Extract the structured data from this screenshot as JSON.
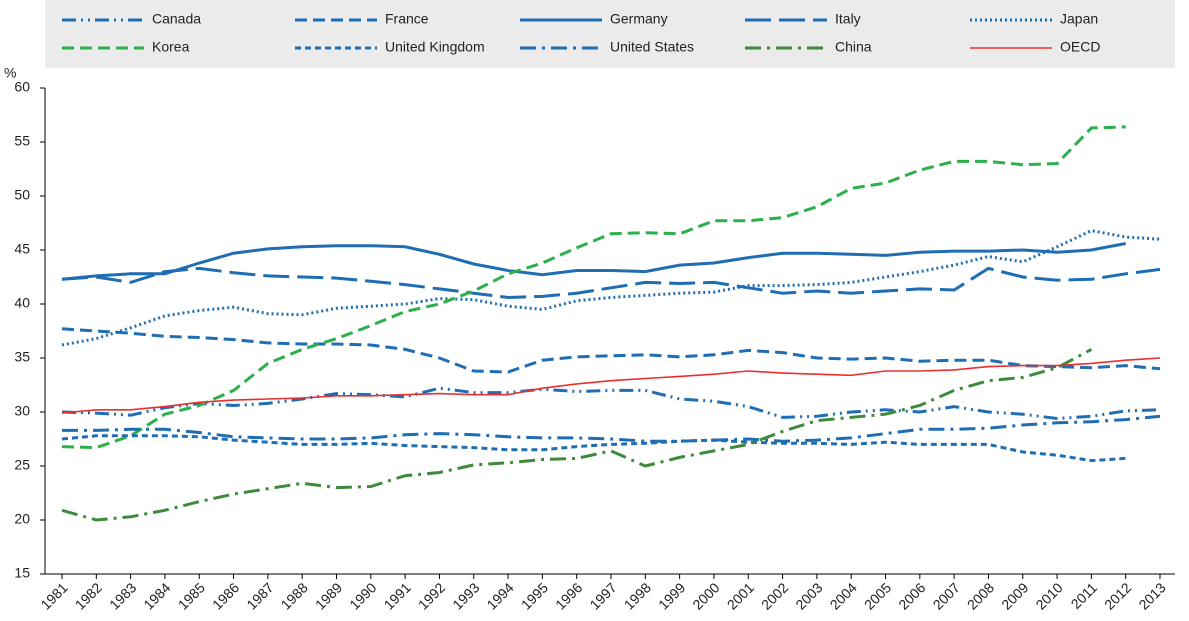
{
  "chart_data": {
    "type": "line",
    "y_label": "%",
    "categories": [
      "1981",
      "1982",
      "1983",
      "1984",
      "1985",
      "1986",
      "1987",
      "1988",
      "1989",
      "1990",
      "1991",
      "1992",
      "1993",
      "1994",
      "1995",
      "1996",
      "1997",
      "1998",
      "1999",
      "2000",
      "2001",
      "2002",
      "2003",
      "2004",
      "2005",
      "2006",
      "2007",
      "2008",
      "2009",
      "2010",
      "2011",
      "2012",
      "2013"
    ],
    "ylim": [
      15,
      60
    ],
    "yticks": [
      15,
      20,
      25,
      30,
      35,
      40,
      45,
      50,
      55,
      60
    ],
    "grid": false,
    "series": [
      {
        "name": "Canada",
        "color": "#1f6db3",
        "dash": "14 5 2 5 2 5",
        "values": [
          30.0,
          29.9,
          29.7,
          30.4,
          30.8,
          30.6,
          30.8,
          31.2,
          31.7,
          31.6,
          31.4,
          32.2,
          31.8,
          31.8,
          32.1,
          31.9,
          32.0,
          32.0,
          31.2,
          31.0,
          30.5,
          29.5,
          29.6,
          30.0,
          30.2,
          30.0,
          30.5,
          30.0,
          29.8,
          29.4,
          29.6,
          30.1,
          30.2
        ]
      },
      {
        "name": "France",
        "color": "#1f6db3",
        "dash": "12 6",
        "values": [
          37.7,
          37.5,
          37.3,
          37.0,
          36.9,
          36.7,
          36.4,
          36.3,
          36.3,
          36.2,
          35.8,
          35.0,
          33.8,
          33.7,
          34.8,
          35.1,
          35.2,
          35.3,
          35.1,
          35.3,
          35.7,
          35.5,
          35.0,
          34.9,
          35.0,
          34.7,
          34.8,
          34.8,
          34.3,
          34.2,
          34.1,
          34.3,
          34.0
        ]
      },
      {
        "name": "Germany",
        "color": "#1f6db3",
        "dash": "",
        "values": [
          42.3,
          42.6,
          42.8,
          42.8,
          43.8,
          44.7,
          45.1,
          45.3,
          45.4,
          45.4,
          45.3,
          44.6,
          43.7,
          43.1,
          42.7,
          43.1,
          43.1,
          43.0,
          43.6,
          43.8,
          44.3,
          44.7,
          44.7,
          44.6,
          44.5,
          44.8,
          44.9,
          44.9,
          45.0,
          44.8,
          45.0,
          45.6,
          null
        ]
      },
      {
        "name": "Italy",
        "color": "#1f6db3",
        "dash": "26 8",
        "values": [
          42.3,
          42.5,
          42.0,
          43.0,
          43.3,
          42.9,
          42.6,
          42.5,
          42.4,
          42.1,
          41.8,
          41.4,
          41.0,
          40.6,
          40.7,
          41.0,
          41.5,
          42.0,
          41.9,
          42.0,
          41.5,
          41.0,
          41.2,
          41.0,
          41.2,
          41.4,
          41.3,
          43.3,
          42.5,
          42.2,
          42.3,
          42.8,
          43.2
        ]
      },
      {
        "name": "Japan",
        "color": "#1f6db3",
        "dash": "2 3",
        "values": [
          36.2,
          36.8,
          37.8,
          38.9,
          39.4,
          39.7,
          39.1,
          39.0,
          39.6,
          39.8,
          40.0,
          40.5,
          40.4,
          39.8,
          39.5,
          40.3,
          40.6,
          40.8,
          41.0,
          41.1,
          41.7,
          41.7,
          41.8,
          42.0,
          42.5,
          43.0,
          43.6,
          44.4,
          43.9,
          45.3,
          46.8,
          46.2,
          46.0
        ]
      },
      {
        "name": "Korea",
        "color": "#2bb04a",
        "dash": "12 6",
        "values": [
          26.8,
          26.7,
          27.8,
          29.8,
          30.6,
          32.0,
          34.5,
          35.8,
          36.8,
          38.0,
          39.3,
          40.0,
          41.2,
          42.8,
          43.8,
          45.2,
          46.5,
          46.6,
          46.5,
          47.7,
          47.7,
          48.0,
          49.0,
          50.7,
          51.2,
          52.4,
          53.2,
          53.2,
          52.9,
          53.0,
          56.3,
          56.4,
          null
        ]
      },
      {
        "name": "United Kingdom",
        "color": "#1f6db3",
        "dash": "6 4",
        "values": [
          27.5,
          27.8,
          27.8,
          27.8,
          27.7,
          27.4,
          27.2,
          27.0,
          27.0,
          27.1,
          26.9,
          26.8,
          26.7,
          26.5,
          26.5,
          26.8,
          27.0,
          27.1,
          27.3,
          27.4,
          27.2,
          27.1,
          27.1,
          27.0,
          27.2,
          27.0,
          27.0,
          27.0,
          26.3,
          26.0,
          25.5,
          25.7,
          null
        ]
      },
      {
        "name": "United States",
        "color": "#1f6db3",
        "dash": "16 6 3 6",
        "values": [
          28.3,
          28.3,
          28.4,
          28.4,
          28.1,
          27.7,
          27.6,
          27.5,
          27.5,
          27.6,
          27.9,
          28.0,
          27.9,
          27.7,
          27.6,
          27.6,
          27.5,
          27.3,
          27.3,
          27.4,
          27.5,
          27.3,
          27.4,
          27.6,
          28.0,
          28.4,
          28.4,
          28.5,
          28.8,
          29.0,
          29.1,
          29.3,
          29.6
        ]
      },
      {
        "name": "China",
        "color": "#3d8a3a",
        "dash": "16 6 3 6",
        "values": [
          20.9,
          20.0,
          20.3,
          20.9,
          21.7,
          22.4,
          22.9,
          23.4,
          23.0,
          23.1,
          24.1,
          24.4,
          25.1,
          25.3,
          25.6,
          25.7,
          26.4,
          25.0,
          25.8,
          26.4,
          27.0,
          28.2,
          29.2,
          29.5,
          29.8,
          30.6,
          32.0,
          32.9,
          33.2,
          34.1,
          35.8,
          null,
          null
        ]
      },
      {
        "name": "OECD",
        "color": "#e8312f",
        "dash": "",
        "width": 1.6,
        "values": [
          29.9,
          30.2,
          30.2,
          30.5,
          30.9,
          31.1,
          31.2,
          31.3,
          31.5,
          31.5,
          31.6,
          31.7,
          31.6,
          31.6,
          32.2,
          32.6,
          32.9,
          33.1,
          33.3,
          33.5,
          33.8,
          33.6,
          33.5,
          33.4,
          33.8,
          33.8,
          33.9,
          34.2,
          34.3,
          34.3,
          34.5,
          34.8,
          35.0
        ]
      }
    ]
  }
}
